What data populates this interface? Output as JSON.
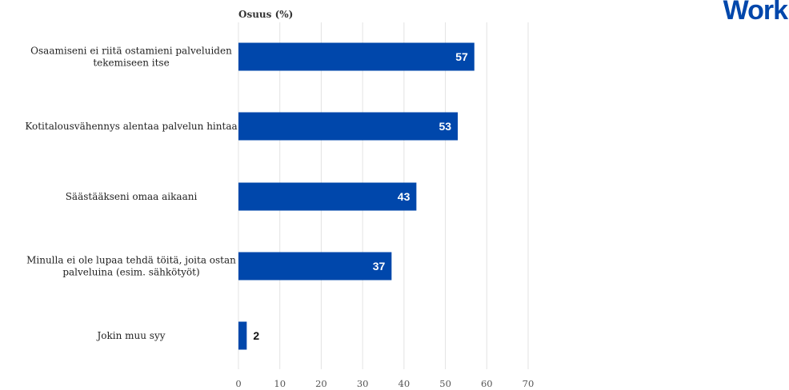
{
  "brand": {
    "logo_text": "Work"
  },
  "chart_data": {
    "type": "bar",
    "orientation": "horizontal",
    "title": "Osuus (%)",
    "categories": [
      "Osaamiseni ei riitä ostamieni palveluiden tekemiseen itse",
      "Kotitalousvähennys alentaa palvelun hintaa",
      "Säästääkseni omaa aikaani",
      "Minulla ei ole lupaa tehdä töitä, joita ostan palveluina (esim. sähkötyöt)",
      "Jokin muu syy"
    ],
    "category_lines": [
      [
        "Osaamiseni ei riitä ostamieni palveluiden",
        "tekemiseen itse"
      ],
      [
        "Kotitalousvähennys alentaa palvelun hintaa"
      ],
      [
        "Säästääkseni omaa aikaani"
      ],
      [
        "Minulla ei ole lupaa tehdä töitä, joita ostan",
        "palveluina (esim. sähkötyöt)"
      ],
      [
        "Jokin muu syy"
      ]
    ],
    "values": [
      57,
      53,
      43,
      37,
      2
    ],
    "xlim": [
      0,
      70
    ],
    "xticks": [
      0,
      10,
      20,
      30,
      40,
      50,
      60,
      70
    ],
    "grid": true,
    "bar_color": "#0047AB",
    "gridline_color": "#e3e3e3"
  }
}
